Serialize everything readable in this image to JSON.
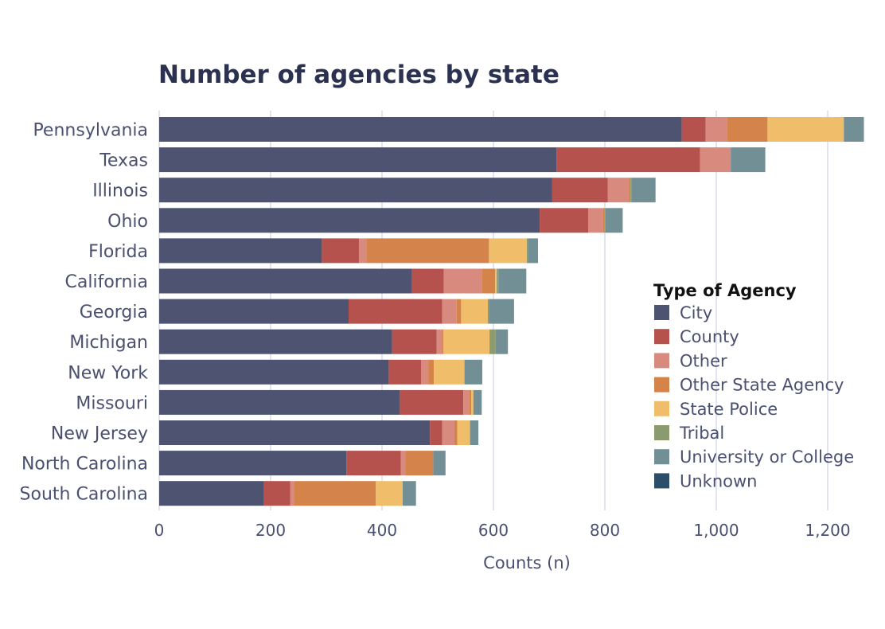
{
  "chart_data": {
    "type": "bar",
    "orientation": "horizontal",
    "stacked": true,
    "title": "Number of agencies by state",
    "xlabel": "Counts (n)",
    "ylabel": "",
    "xlim": [
      0,
      1270
    ],
    "xticks": [
      0,
      200,
      400,
      600,
      800,
      1000,
      1200
    ],
    "xtick_labels": [
      "0",
      "200",
      "400",
      "600",
      "800",
      "1,000",
      "1,200"
    ],
    "grid": true,
    "legend_title": "Type of Agency",
    "legend_position": "right",
    "categories": [
      "Pennsylvania",
      "Texas",
      "Illinois",
      "Ohio",
      "Florida",
      "California",
      "Georgia",
      "Michigan",
      "New York",
      "Missouri",
      "New Jersey",
      "North Carolina",
      "South Carolina"
    ],
    "series": [
      {
        "name": "City",
        "color": "#4d5371",
        "values": [
          938,
          713,
          705,
          683,
          292,
          454,
          340,
          418,
          412,
          432,
          486,
          336,
          188
        ]
      },
      {
        "name": "County",
        "color": "#b5524d",
        "values": [
          43,
          258,
          100,
          87,
          67,
          57,
          168,
          80,
          58,
          114,
          22,
          98,
          47
        ]
      },
      {
        "name": "Other",
        "color": "#d98a7e",
        "values": [
          38,
          55,
          38,
          27,
          13,
          68,
          26,
          10,
          13,
          10,
          22,
          8,
          7
        ]
      },
      {
        "name": "Other State Agency",
        "color": "#d4834a",
        "values": [
          73,
          0,
          3,
          2,
          220,
          24,
          8,
          2,
          10,
          4,
          5,
          50,
          147
        ]
      },
      {
        "name": "State Police",
        "color": "#f0be6a",
        "values": [
          137,
          0,
          0,
          0,
          68,
          3,
          48,
          83,
          55,
          4,
          23,
          0,
          48
        ]
      },
      {
        "name": "Tribal",
        "color": "#8b9b6e",
        "values": [
          0,
          0,
          2,
          2,
          2,
          3,
          2,
          11,
          0,
          0,
          0,
          0,
          0
        ]
      },
      {
        "name": "University or College",
        "color": "#728f96",
        "values": [
          36,
          62,
          43,
          31,
          18,
          50,
          45,
          22,
          32,
          15,
          15,
          22,
          24
        ]
      },
      {
        "name": "Unknown",
        "color": "#2c4e68",
        "values": [
          0,
          0,
          0,
          0,
          0,
          0,
          0,
          0,
          0,
          0,
          0,
          0,
          0
        ]
      }
    ]
  }
}
